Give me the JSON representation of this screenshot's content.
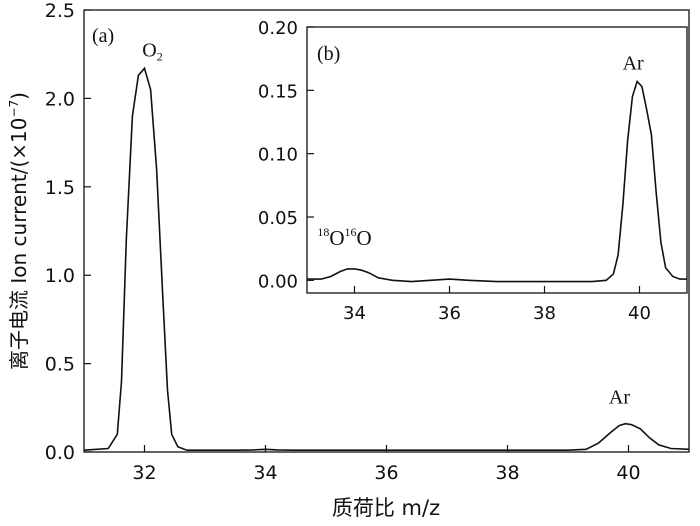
{
  "chart_data": [
    {
      "panel": "(a)",
      "type": "line",
      "xlabel": "质荷比 m/z",
      "ylabel_prefix": "离子电流 Ion current/(×10",
      "ylabel_exp": "−7",
      "ylabel_suffix": ")",
      "xlim": [
        31.0,
        41.0
      ],
      "ylim": [
        0.0,
        2.5
      ],
      "xticks": [
        32,
        34,
        36,
        38,
        40
      ],
      "xtick_labels": [
        "32",
        "34",
        "36",
        "38",
        "40"
      ],
      "yticks": [
        0.0,
        0.5,
        1.0,
        1.5,
        2.0,
        2.5
      ],
      "ytick_labels": [
        "0.0",
        "0.5",
        "1.0",
        "1.5",
        "2.0",
        "2.5"
      ],
      "annotations": [
        {
          "id": "o2",
          "base": "O",
          "sub": "2",
          "x": 32.0,
          "y": 2.17
        },
        {
          "id": "ar",
          "text": "Ar",
          "x": 39.95,
          "y": 0.16
        }
      ],
      "series": [
        {
          "x": [
            31.0,
            31.4,
            31.55,
            31.62,
            31.7,
            31.8,
            31.9,
            32.0,
            32.1,
            32.2,
            32.3,
            32.38,
            32.45,
            32.55,
            32.7,
            33.0,
            33.5,
            33.8,
            34.0,
            34.2,
            34.5,
            35.0,
            36.0,
            37.0,
            38.0,
            39.0,
            39.3,
            39.5,
            39.7,
            39.85,
            39.95,
            40.05,
            40.2,
            40.35,
            40.5,
            40.7,
            41.0
          ],
          "y": [
            0.01,
            0.02,
            0.1,
            0.4,
            1.2,
            1.9,
            2.13,
            2.17,
            2.05,
            1.6,
            0.9,
            0.35,
            0.1,
            0.03,
            0.01,
            0.01,
            0.01,
            0.012,
            0.015,
            0.012,
            0.01,
            0.01,
            0.01,
            0.01,
            0.01,
            0.01,
            0.015,
            0.05,
            0.11,
            0.15,
            0.16,
            0.155,
            0.13,
            0.08,
            0.04,
            0.02,
            0.015
          ]
        }
      ]
    },
    {
      "panel": "(b)",
      "type": "line",
      "xlim": [
        33.0,
        41.0
      ],
      "ylim": [
        -0.01,
        0.2
      ],
      "xticks": [
        34,
        36,
        38,
        40
      ],
      "xtick_labels": [
        "34",
        "36",
        "38",
        "40"
      ],
      "yticks": [
        0.0,
        0.05,
        0.1,
        0.15,
        0.2
      ],
      "ytick_labels": [
        "0.00",
        "0.05",
        "0.10",
        "0.15",
        "0.20"
      ],
      "annotations": [
        {
          "id": "o18",
          "sup1": "18",
          "base1": "O",
          "sup2": "16",
          "base2": "O",
          "x": 34.0,
          "y": 0.009
        },
        {
          "id": "ar",
          "text": "Ar",
          "x": 39.95,
          "y": 0.157
        }
      ],
      "series": [
        {
          "x": [
            33.0,
            33.3,
            33.5,
            33.7,
            33.85,
            34.0,
            34.15,
            34.3,
            34.5,
            34.8,
            35.2,
            35.6,
            36.0,
            36.4,
            37.0,
            37.5,
            38.0,
            38.5,
            39.0,
            39.3,
            39.45,
            39.55,
            39.65,
            39.75,
            39.85,
            39.95,
            40.05,
            40.15,
            40.25,
            40.35,
            40.45,
            40.55,
            40.7,
            40.85,
            41.0
          ],
          "y": [
            0.001,
            0.001,
            0.003,
            0.007,
            0.009,
            0.009,
            0.008,
            0.006,
            0.002,
            0.0,
            -0.001,
            0.0,
            0.001,
            0.0,
            -0.001,
            -0.001,
            -0.001,
            -0.001,
            -0.001,
            0.0,
            0.005,
            0.02,
            0.06,
            0.11,
            0.145,
            0.157,
            0.153,
            0.135,
            0.115,
            0.07,
            0.03,
            0.01,
            0.003,
            0.001,
            0.001
          ]
        }
      ]
    }
  ]
}
